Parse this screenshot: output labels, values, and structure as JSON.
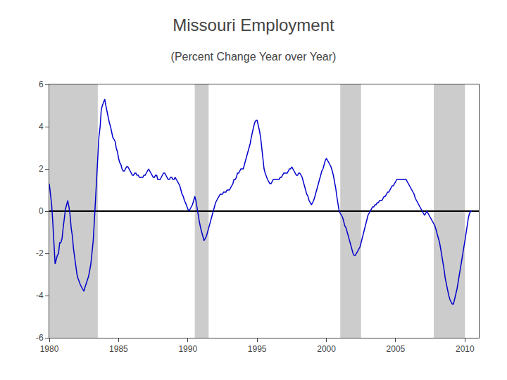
{
  "chart_data": {
    "type": "line",
    "title": "Missouri Employment",
    "subtitle": "(Percent Change Year over Year)",
    "color": "#0000CC",
    "recessions": [
      [
        1980.0,
        1983.5
      ],
      [
        1990.5,
        1991.5
      ],
      [
        2001.0,
        2002.5
      ],
      [
        2007.75,
        2010.0
      ]
    ],
    "recession_color": "#CCCCCC",
    "xlim": [
      1980,
      2011
    ],
    "ylim": [
      -6,
      6
    ],
    "xticks": [
      1980,
      1985,
      1990,
      1995,
      2000,
      2005,
      2010
    ],
    "yticks": [
      -6,
      -4,
      -2,
      0,
      2,
      4,
      6
    ],
    "grid": false,
    "x": [
      1980.0,
      1980.08,
      1980.17,
      1980.25,
      1980.33,
      1980.42,
      1980.5,
      1980.58,
      1980.67,
      1980.75,
      1980.83,
      1980.92,
      1981.0,
      1981.08,
      1981.17,
      1981.25,
      1981.33,
      1981.42,
      1981.5,
      1981.58,
      1981.67,
      1981.75,
      1981.83,
      1981.92,
      1982.0,
      1982.08,
      1982.17,
      1982.25,
      1982.33,
      1982.42,
      1982.5,
      1982.58,
      1982.67,
      1982.75,
      1982.83,
      1982.92,
      1983.0,
      1983.08,
      1983.17,
      1983.25,
      1983.33,
      1983.42,
      1983.5,
      1983.58,
      1983.67,
      1983.75,
      1983.83,
      1983.92,
      1984.0,
      1984.08,
      1984.17,
      1984.25,
      1984.33,
      1984.42,
      1984.5,
      1984.58,
      1984.67,
      1984.75,
      1984.83,
      1984.92,
      1985.0,
      1985.08,
      1985.17,
      1985.25,
      1985.33,
      1985.42,
      1985.5,
      1985.58,
      1985.67,
      1985.75,
      1985.83,
      1985.92,
      1986.0,
      1986.08,
      1986.17,
      1986.25,
      1986.33,
      1986.42,
      1986.5,
      1986.58,
      1986.67,
      1986.75,
      1986.83,
      1986.92,
      1987.0,
      1987.08,
      1987.17,
      1987.25,
      1987.33,
      1987.42,
      1987.5,
      1987.58,
      1987.67,
      1987.75,
      1987.83,
      1987.92,
      1988.0,
      1988.08,
      1988.17,
      1988.25,
      1988.33,
      1988.42,
      1988.5,
      1988.58,
      1988.67,
      1988.75,
      1988.83,
      1988.92,
      1989.0,
      1989.08,
      1989.17,
      1989.25,
      1989.33,
      1989.42,
      1989.5,
      1989.58,
      1989.67,
      1989.75,
      1989.83,
      1989.92,
      1990.0,
      1990.08,
      1990.17,
      1990.25,
      1990.33,
      1990.42,
      1990.5,
      1990.58,
      1990.67,
      1990.75,
      1990.83,
      1990.92,
      1991.0,
      1991.08,
      1991.17,
      1991.25,
      1991.33,
      1991.42,
      1991.5,
      1991.58,
      1991.67,
      1991.75,
      1991.83,
      1991.92,
      1992.0,
      1992.08,
      1992.17,
      1992.25,
      1992.33,
      1992.42,
      1992.5,
      1992.58,
      1992.67,
      1992.75,
      1992.83,
      1992.92,
      1993.0,
      1993.08,
      1993.17,
      1993.25,
      1993.33,
      1993.42,
      1993.5,
      1993.58,
      1993.67,
      1993.75,
      1993.83,
      1993.92,
      1994.0,
      1994.08,
      1994.17,
      1994.25,
      1994.33,
      1994.42,
      1994.5,
      1994.58,
      1994.67,
      1994.75,
      1994.83,
      1994.92,
      1995.0,
      1995.08,
      1995.17,
      1995.25,
      1995.33,
      1995.42,
      1995.5,
      1995.58,
      1995.67,
      1995.75,
      1995.83,
      1995.92,
      1996.0,
      1996.08,
      1996.17,
      1996.25,
      1996.33,
      1996.42,
      1996.5,
      1996.58,
      1996.67,
      1996.75,
      1996.83,
      1996.92,
      1997.0,
      1997.08,
      1997.17,
      1997.25,
      1997.33,
      1997.42,
      1997.5,
      1997.58,
      1997.67,
      1997.75,
      1997.83,
      1997.92,
      1998.0,
      1998.08,
      1998.17,
      1998.25,
      1998.33,
      1998.42,
      1998.5,
      1998.58,
      1998.67,
      1998.75,
      1998.83,
      1998.92,
      1999.0,
      1999.08,
      1999.17,
      1999.25,
      1999.33,
      1999.42,
      1999.5,
      1999.58,
      1999.67,
      1999.75,
      1999.83,
      1999.92,
      2000.0,
      2000.08,
      2000.17,
      2000.25,
      2000.33,
      2000.42,
      2000.5,
      2000.58,
      2000.67,
      2000.75,
      2000.83,
      2000.92,
      2001.0,
      2001.08,
      2001.17,
      2001.25,
      2001.33,
      2001.42,
      2001.5,
      2001.58,
      2001.67,
      2001.75,
      2001.83,
      2001.92,
      2002.0,
      2002.08,
      2002.17,
      2002.25,
      2002.33,
      2002.42,
      2002.5,
      2002.58,
      2002.67,
      2002.75,
      2002.83,
      2002.92,
      2003.0,
      2003.08,
      2003.17,
      2003.25,
      2003.33,
      2003.42,
      2003.5,
      2003.58,
      2003.67,
      2003.75,
      2003.83,
      2003.92,
      2004.0,
      2004.08,
      2004.17,
      2004.25,
      2004.33,
      2004.42,
      2004.5,
      2004.58,
      2004.67,
      2004.75,
      2004.83,
      2004.92,
      2005.0,
      2005.08,
      2005.17,
      2005.25,
      2005.33,
      2005.42,
      2005.5,
      2005.58,
      2005.67,
      2005.75,
      2005.83,
      2005.92,
      2006.0,
      2006.08,
      2006.17,
      2006.25,
      2006.33,
      2006.42,
      2006.5,
      2006.58,
      2006.67,
      2006.75,
      2006.83,
      2006.92,
      2007.0,
      2007.08,
      2007.17,
      2007.25,
      2007.33,
      2007.42,
      2007.5,
      2007.58,
      2007.67,
      2007.75,
      2007.83,
      2007.92,
      2008.0,
      2008.08,
      2008.17,
      2008.25,
      2008.33,
      2008.42,
      2008.5,
      2008.58,
      2008.67,
      2008.75,
      2008.83,
      2008.92,
      2009.0,
      2009.08,
      2009.17,
      2009.25,
      2009.33,
      2009.42,
      2009.5,
      2009.58,
      2009.67,
      2009.75,
      2009.83,
      2009.92,
      2010.0,
      2010.08,
      2010.17,
      2010.25,
      2010.33,
      2010.42,
      2010.5
    ],
    "values": [
      1.3,
      0.8,
      0.3,
      -0.5,
      -1.5,
      -2.5,
      -2.3,
      -2.1,
      -2.0,
      -1.5,
      -1.5,
      -1.3,
      -0.8,
      -0.3,
      0.1,
      0.3,
      0.5,
      0.2,
      -0.2,
      -0.8,
      -1.2,
      -1.8,
      -2.2,
      -2.5,
      -3.0,
      -3.2,
      -3.4,
      -3.5,
      -3.6,
      -3.7,
      -3.8,
      -3.6,
      -3.4,
      -3.3,
      -3.1,
      -2.8,
      -2.5,
      -2.0,
      -1.4,
      -0.5,
      0.5,
      1.5,
      2.5,
      3.5,
      4.0,
      4.8,
      5.0,
      5.2,
      5.3,
      5.0,
      4.7,
      4.5,
      4.2,
      4.0,
      3.7,
      3.5,
      3.4,
      3.3,
      3.0,
      2.8,
      2.5,
      2.3,
      2.2,
      2.0,
      1.9,
      1.9,
      2.0,
      2.1,
      2.1,
      2.0,
      1.9,
      1.8,
      1.7,
      1.7,
      1.8,
      1.8,
      1.7,
      1.7,
      1.6,
      1.6,
      1.6,
      1.6,
      1.7,
      1.7,
      1.8,
      1.9,
      2.0,
      1.9,
      1.8,
      1.7,
      1.6,
      1.6,
      1.7,
      1.7,
      1.5,
      1.5,
      1.5,
      1.6,
      1.7,
      1.8,
      1.8,
      1.7,
      1.6,
      1.5,
      1.5,
      1.6,
      1.6,
      1.5,
      1.5,
      1.6,
      1.5,
      1.4,
      1.3,
      1.2,
      1.0,
      0.8,
      0.7,
      0.5,
      0.4,
      0.2,
      0.1,
      0.0,
      0.1,
      0.2,
      0.3,
      0.5,
      0.7,
      0.5,
      0.1,
      -0.2,
      -0.5,
      -0.8,
      -1.0,
      -1.2,
      -1.4,
      -1.3,
      -1.2,
      -1.0,
      -0.8,
      -0.6,
      -0.4,
      -0.2,
      0.0,
      0.2,
      0.4,
      0.5,
      0.6,
      0.7,
      0.8,
      0.8,
      0.8,
      0.9,
      0.9,
      0.9,
      1.0,
      1.0,
      1.0,
      1.1,
      1.2,
      1.3,
      1.5,
      1.5,
      1.6,
      1.8,
      1.8,
      1.9,
      2.0,
      2.0,
      2.0,
      2.2,
      2.4,
      2.6,
      2.8,
      3.0,
      3.2,
      3.5,
      3.8,
      4.0,
      4.2,
      4.3,
      4.3,
      4.1,
      3.8,
      3.5,
      3.0,
      2.5,
      2.0,
      1.8,
      1.6,
      1.5,
      1.4,
      1.3,
      1.3,
      1.4,
      1.5,
      1.5,
      1.5,
      1.5,
      1.5,
      1.5,
      1.6,
      1.6,
      1.7,
      1.8,
      1.8,
      1.8,
      1.8,
      1.9,
      2.0,
      2.0,
      2.1,
      2.0,
      1.9,
      1.8,
      1.7,
      1.7,
      1.8,
      1.8,
      1.7,
      1.6,
      1.4,
      1.2,
      1.0,
      0.8,
      0.7,
      0.5,
      0.4,
      0.3,
      0.4,
      0.5,
      0.7,
      0.9,
      1.1,
      1.3,
      1.5,
      1.7,
      1.9,
      2.0,
      2.2,
      2.4,
      2.5,
      2.4,
      2.3,
      2.2,
      2.1,
      1.9,
      1.7,
      1.4,
      1.1,
      0.7,
      0.3,
      0.0,
      -0.1,
      -0.2,
      -0.3,
      -0.5,
      -0.7,
      -0.8,
      -1.0,
      -1.2,
      -1.4,
      -1.6,
      -1.8,
      -2.0,
      -2.1,
      -2.1,
      -2.0,
      -1.9,
      -1.8,
      -1.7,
      -1.5,
      -1.3,
      -1.0,
      -0.8,
      -0.6,
      -0.4,
      -0.2,
      -0.1,
      0.0,
      0.1,
      0.2,
      0.2,
      0.3,
      0.3,
      0.4,
      0.4,
      0.5,
      0.5,
      0.5,
      0.6,
      0.7,
      0.7,
      0.8,
      0.9,
      0.9,
      1.0,
      1.1,
      1.2,
      1.2,
      1.3,
      1.4,
      1.5,
      1.5,
      1.5,
      1.5,
      1.5,
      1.5,
      1.5,
      1.5,
      1.5,
      1.4,
      1.3,
      1.2,
      1.1,
      1.0,
      0.9,
      0.8,
      0.6,
      0.5,
      0.4,
      0.3,
      0.2,
      0.1,
      0.0,
      -0.1,
      -0.2,
      -0.1,
      0.0,
      -0.1,
      -0.2,
      -0.3,
      -0.4,
      -0.5,
      -0.6,
      -0.7,
      -0.9,
      -1.1,
      -1.3,
      -1.5,
      -1.8,
      -2.1,
      -2.4,
      -2.8,
      -3.2,
      -3.5,
      -3.8,
      -4.0,
      -4.2,
      -4.3,
      -4.4,
      -4.4,
      -4.2,
      -4.0,
      -3.7,
      -3.4,
      -3.0,
      -2.7,
      -2.4,
      -2.0,
      -1.7,
      -1.4,
      -1.0,
      -0.6,
      -0.3,
      -0.1,
      0.0,
      0.0
    ]
  }
}
